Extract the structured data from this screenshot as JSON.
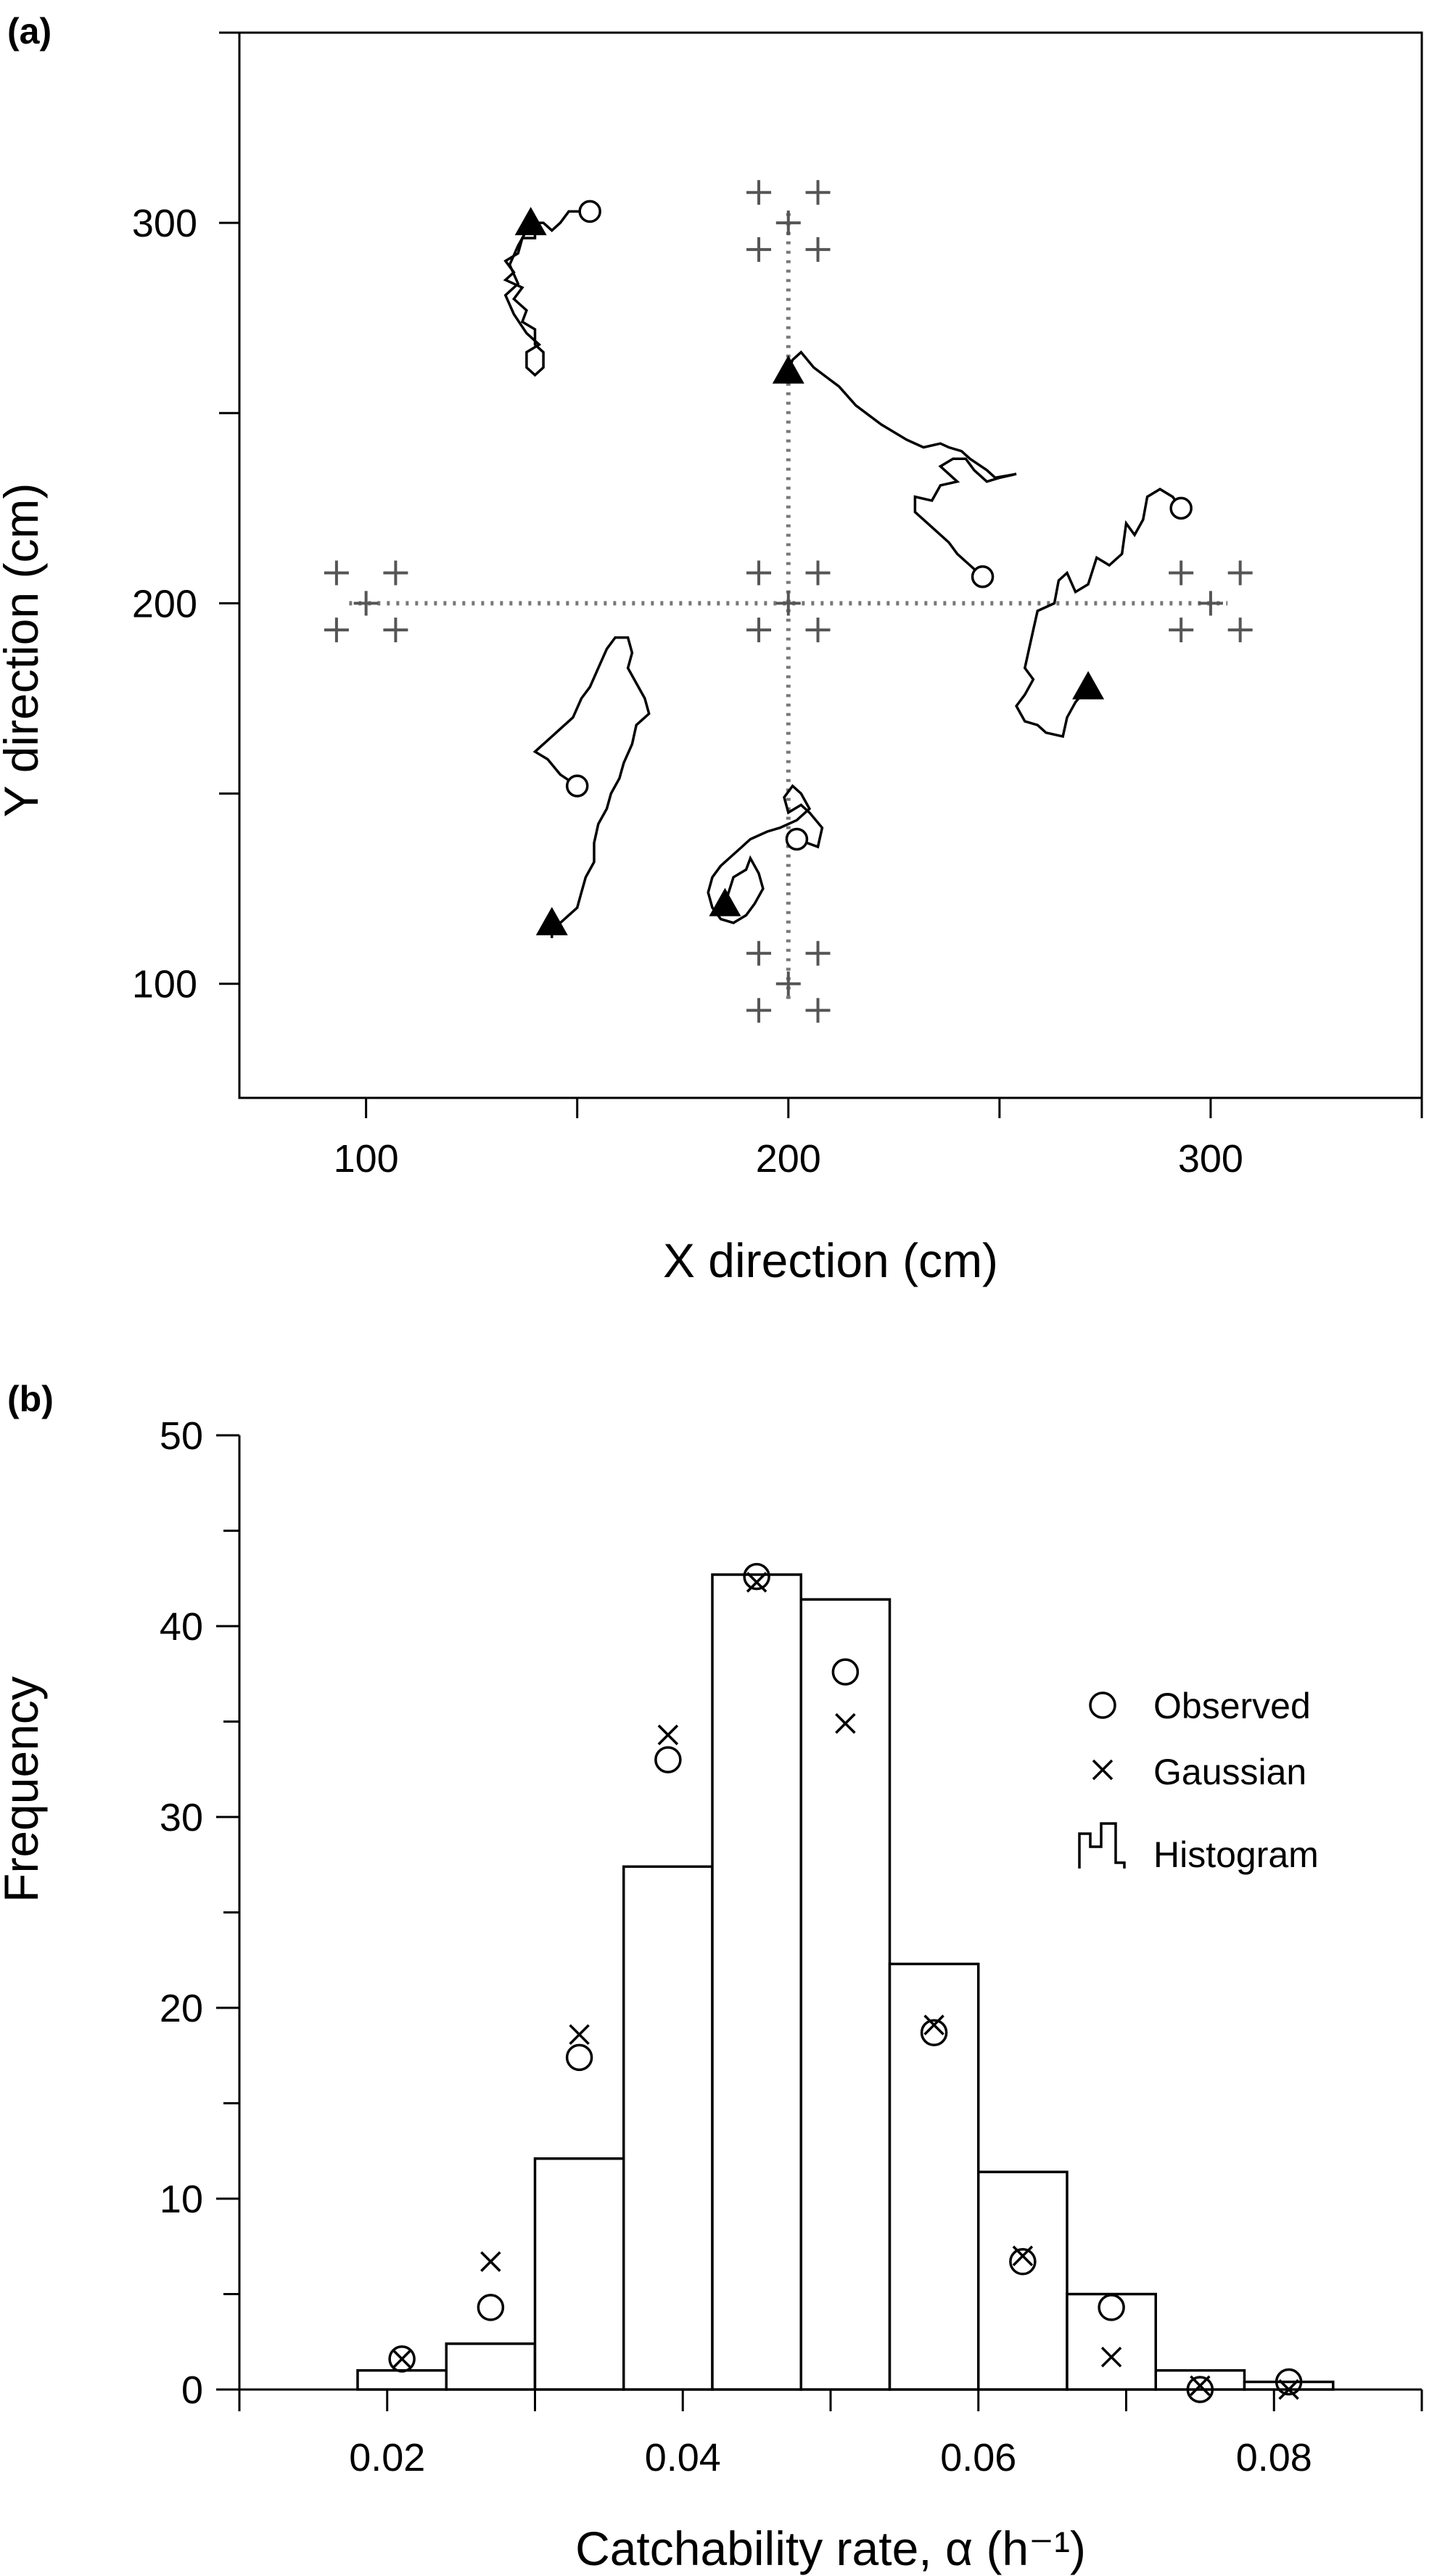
{
  "chart_data": [
    {
      "panel_label": "(a)",
      "type": "scatter",
      "xlabel": "X direction (cm)",
      "ylabel": "Y direction (cm)",
      "xlim": [
        70,
        350
      ],
      "ylim": [
        70,
        350
      ],
      "xticks": [
        100,
        150,
        200,
        250,
        300,
        350
      ],
      "yticks": [
        100,
        150,
        200,
        250,
        300,
        350
      ],
      "xtick_labels": [
        "100",
        "200",
        "300"
      ],
      "ytick_labels": [
        "100",
        "200",
        "300"
      ],
      "guides": {
        "vertical": {
          "x": 200,
          "y_from": 96,
          "y_to": 304
        },
        "horizontal": {
          "y": 200,
          "x_from": 96,
          "x_to": 304
        }
      },
      "trap_markers": [
        [
          193,
          308
        ],
        [
          207,
          308
        ],
        [
          200,
          300
        ],
        [
          193,
          293
        ],
        [
          207,
          293
        ],
        [
          193,
          208
        ],
        [
          207,
          208
        ],
        [
          200,
          200
        ],
        [
          193,
          193
        ],
        [
          207,
          193
        ],
        [
          193,
          108
        ],
        [
          207,
          108
        ],
        [
          200,
          100
        ],
        [
          193,
          93
        ],
        [
          207,
          93
        ],
        [
          93,
          208
        ],
        [
          107,
          208
        ],
        [
          100,
          200
        ],
        [
          93,
          193
        ],
        [
          107,
          193
        ],
        [
          293,
          208
        ],
        [
          307,
          208
        ],
        [
          300,
          200
        ],
        [
          293,
          193
        ],
        [
          307,
          193
        ]
      ],
      "tracks": [
        {
          "start": [
            153,
            303
          ],
          "end": [
            139,
            300
          ],
          "path": [
            [
              153,
              303
            ],
            [
              148,
              303
            ],
            [
              146,
              300
            ],
            [
              144,
              298
            ],
            [
              142,
              300
            ],
            [
              140,
              300
            ],
            [
              140,
              296
            ],
            [
              137,
              296
            ],
            [
              136,
              292
            ],
            [
              133,
              290
            ],
            [
              135,
              287
            ],
            [
              133,
              285
            ],
            [
              137,
              283
            ],
            [
              135,
              280
            ],
            [
              138,
              277
            ],
            [
              137,
              274
            ],
            [
              140,
              272
            ],
            [
              140,
              268
            ],
            [
              142,
              266
            ],
            [
              142,
              262
            ],
            [
              140,
              260
            ],
            [
              138,
              262
            ],
            [
              138,
              266
            ],
            [
              141,
              268
            ],
            [
              138,
              271
            ],
            [
              135,
              276
            ],
            [
              133,
              281
            ],
            [
              136,
              284
            ],
            [
              134,
              289
            ],
            [
              136,
              294
            ],
            [
              138,
              298
            ],
            [
              139,
              300
            ]
          ]
        },
        {
          "start": [
            246,
            207
          ],
          "end": [
            200,
            261
          ],
          "path": [
            [
              246,
              207
            ],
            [
              243,
              210
            ],
            [
              240,
              213
            ],
            [
              238,
              216
            ],
            [
              236,
              218
            ],
            [
              233,
              221
            ],
            [
              230,
              224
            ],
            [
              230,
              228
            ],
            [
              234,
              227
            ],
            [
              236,
              231
            ],
            [
              240,
              232
            ],
            [
              236,
              236
            ],
            [
              239,
              238
            ],
            [
              242,
              238
            ],
            [
              244,
              235
            ],
            [
              247,
              232
            ],
            [
              250,
              233
            ],
            [
              254,
              234
            ],
            [
              249,
              233
            ],
            [
              247,
              235
            ],
            [
              243,
              238
            ],
            [
              241,
              240
            ],
            [
              238,
              241
            ],
            [
              236,
              242
            ],
            [
              232,
              241
            ],
            [
              228,
              243
            ],
            [
              222,
              247
            ],
            [
              216,
              252
            ],
            [
              212,
              257
            ],
            [
              206,
              262
            ],
            [
              203,
              266
            ],
            [
              201,
              264
            ],
            [
              200,
              261
            ]
          ]
        },
        {
          "start": [
            293,
            225
          ],
          "end": [
            271,
            178
          ],
          "path": [
            [
              293,
              225
            ],
            [
              291,
              228
            ],
            [
              288,
              230
            ],
            [
              285,
              228
            ],
            [
              284,
              222
            ],
            [
              282,
              218
            ],
            [
              280,
              221
            ],
            [
              279,
              213
            ],
            [
              276,
              210
            ],
            [
              273,
              212
            ],
            [
              271,
              205
            ],
            [
              268,
              203
            ],
            [
              266,
              208
            ],
            [
              264,
              206
            ],
            [
              263,
              200
            ],
            [
              259,
              198
            ],
            [
              258,
              193
            ],
            [
              257,
              188
            ],
            [
              256,
              183
            ],
            [
              258,
              180
            ],
            [
              256,
              176
            ],
            [
              254,
              173
            ],
            [
              256,
              169
            ],
            [
              259,
              168
            ],
            [
              261,
              166
            ],
            [
              265,
              165
            ],
            [
              266,
              170
            ],
            [
              268,
              174
            ],
            [
              271,
              178
            ]
          ]
        },
        {
          "start": [
            150,
            152
          ],
          "end": [
            144,
            116
          ],
          "path": [
            [
              150,
              152
            ],
            [
              146,
              155
            ],
            [
              143,
              159
            ],
            [
              140,
              161
            ],
            [
              143,
              164
            ],
            [
              146,
              167
            ],
            [
              149,
              170
            ],
            [
              151,
              175
            ],
            [
              153,
              178
            ],
            [
              155,
              183
            ],
            [
              157,
              188
            ],
            [
              159,
              191
            ],
            [
              162,
              191
            ],
            [
              163,
              187
            ],
            [
              162,
              183
            ],
            [
              164,
              179
            ],
            [
              166,
              175
            ],
            [
              167,
              171
            ],
            [
              164,
              168
            ],
            [
              163,
              163
            ],
            [
              161,
              158
            ],
            [
              160,
              154
            ],
            [
              158,
              150
            ],
            [
              157,
              146
            ],
            [
              155,
              142
            ],
            [
              154,
              137
            ],
            [
              154,
              132
            ],
            [
              152,
              128
            ],
            [
              151,
              124
            ],
            [
              150,
              120
            ],
            [
              148,
              118
            ],
            [
              146,
              116
            ],
            [
              144,
              114
            ],
            [
              144,
              112
            ],
            [
              144,
              116
            ]
          ]
        },
        {
          "start": [
            202,
            138
          ],
          "end": [
            185,
            121
          ],
          "path": [
            [
              202,
              138
            ],
            [
              207,
              136
            ],
            [
              208,
              141
            ],
            [
              205,
              145
            ],
            [
              203,
              147
            ],
            [
              200,
              145
            ],
            [
              199,
              149
            ],
            [
              201,
              152
            ],
            [
              203,
              150
            ],
            [
              205,
              146
            ],
            [
              202,
              143
            ],
            [
              198,
              141
            ],
            [
              195,
              140
            ],
            [
              191,
              138
            ],
            [
              189,
              136
            ],
            [
              187,
              134
            ],
            [
              184,
              131
            ],
            [
              182,
              128
            ],
            [
              181,
              124
            ],
            [
              182,
              120
            ],
            [
              184,
              117
            ],
            [
              187,
              116
            ],
            [
              190,
              118
            ],
            [
              192,
              121
            ],
            [
              194,
              125
            ],
            [
              193,
              129
            ],
            [
              191,
              133
            ],
            [
              190,
              130
            ],
            [
              187,
              128
            ],
            [
              185,
              121
            ]
          ]
        }
      ]
    },
    {
      "panel_label": "(b)",
      "type": "bar",
      "xlabel": "Catchability rate, α (h⁻¹)",
      "ylabel": "Frequency",
      "xlim": [
        0.01,
        0.09
      ],
      "ylim": [
        0,
        50
      ],
      "xticks": [
        0.01,
        0.02,
        0.03,
        0.04,
        0.05,
        0.06,
        0.07,
        0.08,
        0.09
      ],
      "xtick_labels": [
        "0.02",
        "0.04",
        "0.06",
        "0.08"
      ],
      "xtick_label_values": [
        0.02,
        0.04,
        0.06,
        0.08
      ],
      "yticks": [
        0,
        5,
        10,
        15,
        20,
        25,
        30,
        35,
        40,
        45,
        50
      ],
      "ytick_labels": [
        "0",
        "10",
        "20",
        "30",
        "40",
        "50"
      ],
      "ytick_label_values": [
        0,
        10,
        20,
        30,
        40,
        50
      ],
      "bin_width": 0.006,
      "bin_centers": [
        0.021,
        0.027,
        0.033,
        0.039,
        0.045,
        0.051,
        0.057,
        0.063,
        0.069,
        0.075,
        0.081
      ],
      "series": [
        {
          "name": "Histogram",
          "values": [
            1.0,
            2.4,
            12.1,
            27.4,
            42.7,
            41.4,
            22.3,
            11.4,
            5.0,
            1.0,
            0.4
          ]
        },
        {
          "name": "Observed",
          "values": [
            1.6,
            4.3,
            17.4,
            33.0,
            42.6,
            37.6,
            18.7,
            6.7,
            4.3,
            0.0,
            0.4
          ]
        },
        {
          "name": "Gaussian",
          "values": [
            1.6,
            6.7,
            18.6,
            34.3,
            42.3,
            34.9,
            19.1,
            7.0,
            1.7,
            0.2,
            0.0
          ]
        }
      ],
      "legend": {
        "position": "right",
        "items": [
          {
            "label": "Observed",
            "marker": "circle"
          },
          {
            "label": "Gaussian",
            "marker": "x"
          },
          {
            "label": "Histogram",
            "marker": "histogram"
          }
        ]
      }
    }
  ]
}
